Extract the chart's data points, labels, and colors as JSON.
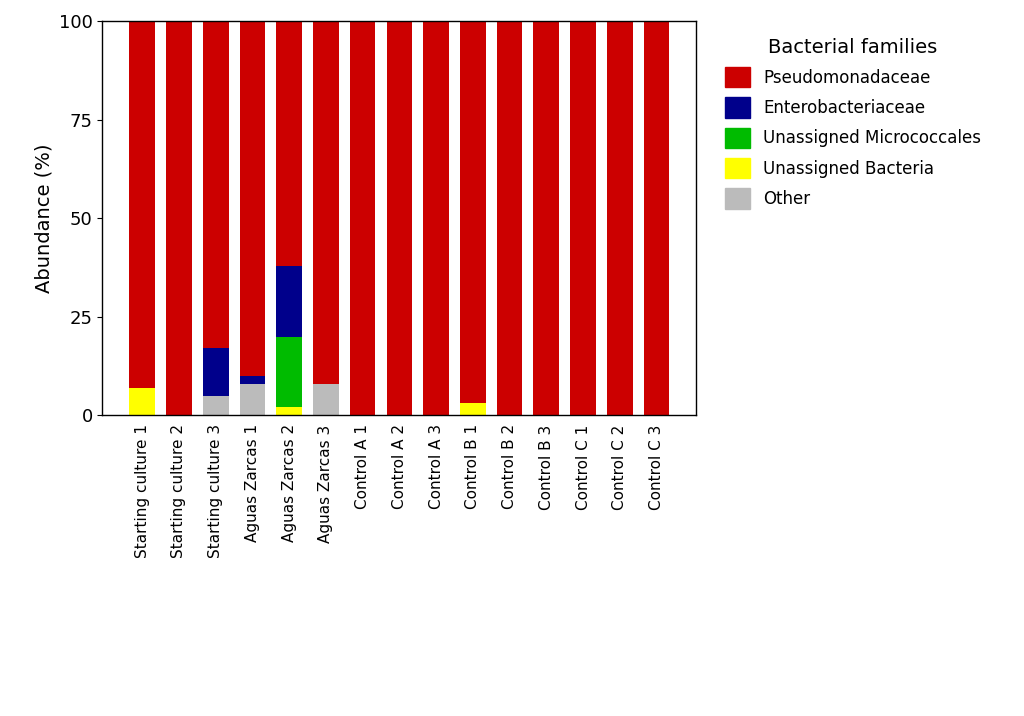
{
  "categories": [
    "Starting culture 1",
    "Starting culture 2",
    "Starting culture 3",
    "Aguas Zarcas 1",
    "Aguas Zarcas 2",
    "Aguas Zarcas 3",
    "Control A 1",
    "Control A 2",
    "Control A 3",
    "Control B 1",
    "Control B 2",
    "Control B 3",
    "Control C 1",
    "Control C 2",
    "Control C 3"
  ],
  "series": {
    "Other": [
      0,
      0,
      5,
      8,
      0,
      8,
      0,
      0,
      0,
      0,
      0,
      0,
      0,
      0,
      0
    ],
    "Unassigned Bacteria": [
      7,
      0,
      0,
      0,
      2,
      0,
      0,
      0,
      0,
      3,
      0,
      0,
      0,
      0,
      0
    ],
    "Unassigned Micrococcales": [
      0,
      0,
      0,
      0,
      18,
      0,
      0,
      0,
      0,
      0,
      0,
      0,
      0,
      0,
      0
    ],
    "Enterobacteriaceae": [
      0,
      0,
      12,
      2,
      18,
      0,
      0,
      0,
      0,
      0,
      0,
      0,
      0,
      0,
      0
    ],
    "Pseudomonadaceae": [
      93,
      100,
      83,
      90,
      62,
      92,
      100,
      100,
      100,
      97,
      100,
      100,
      100,
      100,
      100
    ]
  },
  "colors": {
    "Pseudomonadaceae": "#CC0000",
    "Enterobacteriaceae": "#00008B",
    "Unassigned Micrococcales": "#00BB00",
    "Unassigned Bacteria": "#FFFF00",
    "Other": "#BBBBBB"
  },
  "ylabel": "Abundance (%)",
  "legend_title": "Bacterial families",
  "ylim": [
    0,
    100
  ],
  "yticks": [
    0,
    25,
    50,
    75,
    100
  ],
  "figsize": [
    10.24,
    7.16
  ],
  "dpi": 100,
  "legend_order": [
    "Pseudomonadaceae",
    "Enterobacteriaceae",
    "Unassigned Micrococcales",
    "Unassigned Bacteria",
    "Other"
  ],
  "stack_order": [
    "Other",
    "Unassigned Bacteria",
    "Unassigned Micrococcales",
    "Enterobacteriaceae",
    "Pseudomonadaceae"
  ]
}
